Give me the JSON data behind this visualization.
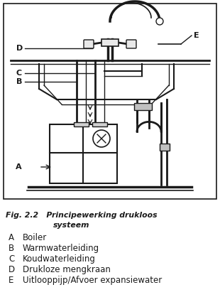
{
  "title_line1": "Fig. 2.2   Principewerking drukloos",
  "title_line2": "systeem",
  "labels": {
    "A": "Boiler",
    "B": "Warmwaterleiding",
    "C": "Koudwaterleiding",
    "D": "Drukloze mengkraan",
    "E": "Uitlooppijp/Afvoer expansiewater"
  },
  "bg_color": "#ffffff",
  "line_color": "#1a1a1a",
  "gray_color": "#888888"
}
